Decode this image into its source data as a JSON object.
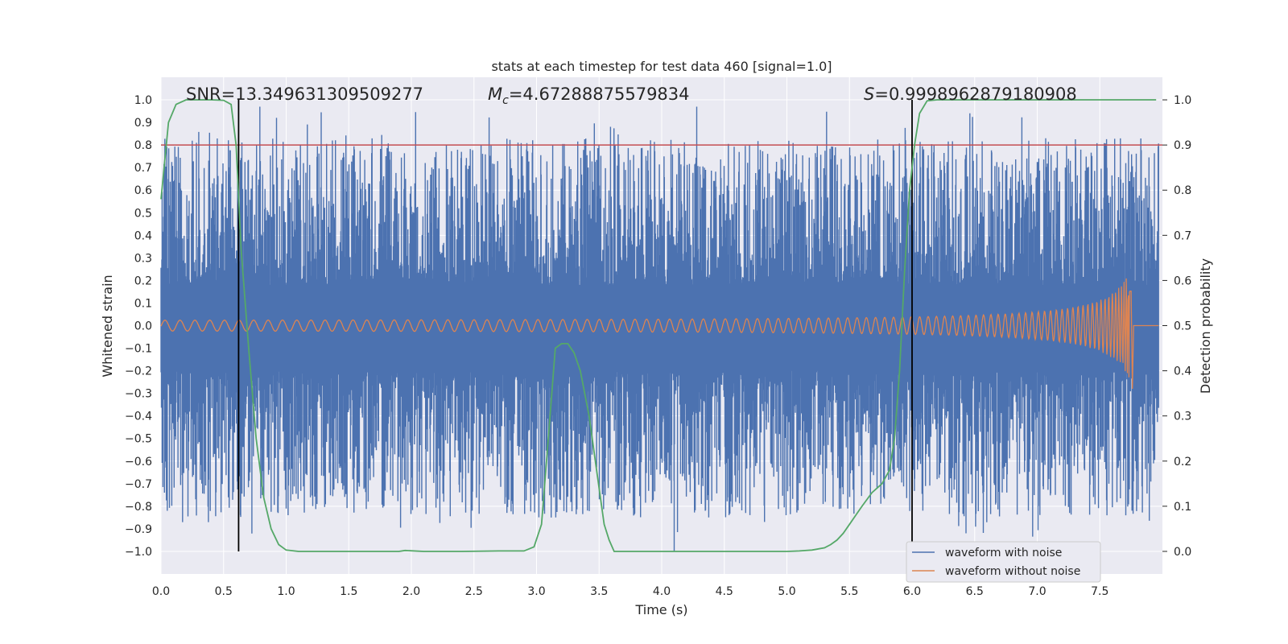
{
  "chart_data": {
    "type": "line",
    "title": "stats at each timestep for test data 460 [signal=1.0]",
    "xlabel": "Time (s)",
    "ylabel_left": "Whitened strain",
    "ylabel_right": "Detection probability",
    "xlim": [
      0.0,
      8.0
    ],
    "ylim_left": [
      -1.1,
      1.1
    ],
    "ylim_right": [
      -0.05,
      1.05
    ],
    "x_ticks": [
      "0.0",
      "0.5",
      "1.0",
      "1.5",
      "2.0",
      "2.5",
      "3.0",
      "3.5",
      "4.0",
      "4.5",
      "5.0",
      "5.5",
      "6.0",
      "6.5",
      "7.0",
      "7.5"
    ],
    "x_tick_values": [
      0.0,
      0.5,
      1.0,
      1.5,
      2.0,
      2.5,
      3.0,
      3.5,
      4.0,
      4.5,
      5.0,
      5.5,
      6.0,
      6.5,
      7.0,
      7.5
    ],
    "y_left_ticks": [
      "1.0",
      "0.9",
      "0.8",
      "0.7",
      "0.6",
      "0.5",
      "0.4",
      "0.3",
      "0.2",
      "0.1",
      "0.0",
      "−0.1",
      "−0.2",
      "−0.3",
      "−0.4",
      "−0.5",
      "−0.6",
      "−0.7",
      "−0.8",
      "−0.9",
      "−1.0"
    ],
    "y_left_tick_values": [
      1.0,
      0.9,
      0.8,
      0.7,
      0.6,
      0.5,
      0.4,
      0.3,
      0.2,
      0.1,
      0.0,
      -0.1,
      -0.2,
      -0.3,
      -0.4,
      -0.5,
      -0.6,
      -0.7,
      -0.8,
      -0.9,
      -1.0
    ],
    "y_right_ticks": [
      "1.0",
      "0.9",
      "0.8",
      "0.7",
      "0.6",
      "0.5",
      "0.4",
      "0.3",
      "0.2",
      "0.1",
      "0.0"
    ],
    "y_right_tick_values": [
      1.0,
      0.9,
      0.8,
      0.7,
      0.6,
      0.5,
      0.4,
      0.3,
      0.2,
      0.1,
      0.0
    ],
    "annotations": {
      "snr": "SNR=13.349631309509277",
      "mc_symbol": "M",
      "mc_sub": "c",
      "mc_value": "=4.67288875579834",
      "s_symbol": "S",
      "s_value": "=0.9998962879180908"
    },
    "threshold": 0.9,
    "vlines": [
      0.62,
      6.0
    ],
    "series": [
      {
        "name": "waveform with noise",
        "color": "#4c72b0",
        "axis": "left",
        "envelope": true,
        "upper_typical": 0.4,
        "lower_typical": -0.45,
        "peak": 0.97,
        "trough": -1.0
      },
      {
        "name": "waveform without noise",
        "color": "#dd8452",
        "axis": "left",
        "chirp": true,
        "start_amp": 0.02,
        "end_amp": 0.25,
        "merger_time": 7.75
      },
      {
        "name": "detection probability",
        "color": "#55a868",
        "axis": "right",
        "x": [
          0.0,
          0.06,
          0.12,
          0.2,
          0.3,
          0.4,
          0.5,
          0.56,
          0.6,
          0.64,
          0.7,
          0.76,
          0.82,
          0.88,
          0.94,
          1.0,
          1.1,
          1.3,
          1.6,
          1.9,
          1.95,
          2.1,
          2.4,
          2.7,
          2.9,
          2.98,
          3.04,
          3.1,
          3.15,
          3.2,
          3.25,
          3.3,
          3.35,
          3.42,
          3.48,
          3.54,
          3.58,
          3.62,
          3.8,
          4.2,
          4.6,
          5.0,
          5.1,
          5.2,
          5.3,
          5.35,
          5.4,
          5.45,
          5.5,
          5.55,
          5.6,
          5.68,
          5.76,
          5.82,
          5.86,
          5.9,
          5.94,
          5.98,
          6.02,
          6.06,
          6.12,
          6.2,
          6.4,
          7.0,
          7.5,
          7.95
        ],
        "y": [
          0.78,
          0.95,
          0.99,
          1.0,
          1.0,
          1.0,
          0.999,
          0.99,
          0.9,
          0.67,
          0.45,
          0.25,
          0.12,
          0.05,
          0.015,
          0.003,
          0.0,
          0.0,
          0.0,
          0.0,
          0.002,
          0.0,
          0.0,
          0.001,
          0.001,
          0.01,
          0.06,
          0.27,
          0.45,
          0.46,
          0.46,
          0.44,
          0.4,
          0.3,
          0.18,
          0.06,
          0.025,
          0.0,
          0.0,
          0.0,
          0.0,
          0.0,
          0.001,
          0.003,
          0.008,
          0.015,
          0.025,
          0.04,
          0.06,
          0.08,
          0.1,
          0.13,
          0.15,
          0.18,
          0.25,
          0.4,
          0.62,
          0.8,
          0.9,
          0.97,
          0.998,
          1.0,
          1.0,
          1.0,
          1.0,
          1.0
        ]
      }
    ],
    "legend_location": "lower-right",
    "colors": {
      "threshold": "#c44e52",
      "vline": "#000000",
      "background": "#eaeaf2",
      "grid": "#ffffff"
    }
  }
}
